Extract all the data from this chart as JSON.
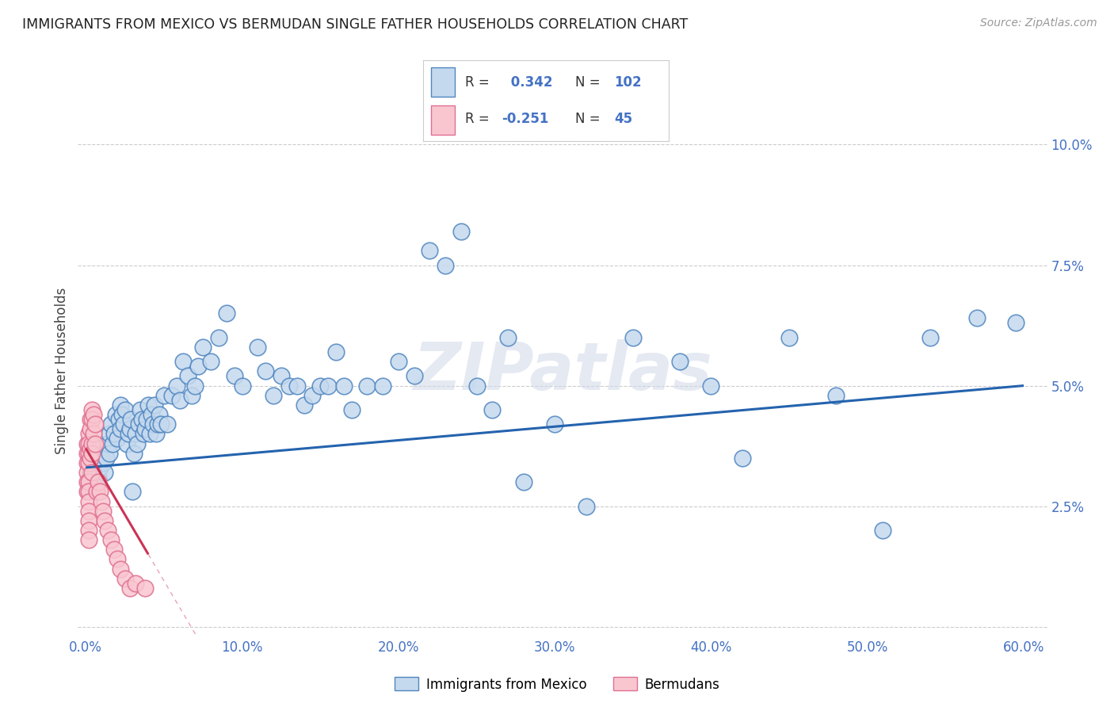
{
  "title": "IMMIGRANTS FROM MEXICO VS BERMUDAN SINGLE FATHER HOUSEHOLDS CORRELATION CHART",
  "source": "Source: ZipAtlas.com",
  "xlabel_blue": "Immigrants from Mexico",
  "xlabel_pink": "Bermudans",
  "ylabel": "Single Father Households",
  "xlim": [
    -0.005,
    0.615
  ],
  "ylim": [
    -0.002,
    0.108
  ],
  "xticks": [
    0.0,
    0.1,
    0.2,
    0.3,
    0.4,
    0.5,
    0.6
  ],
  "xtick_labels": [
    "0.0%",
    "10.0%",
    "20.0%",
    "30.0%",
    "40.0%",
    "50.0%",
    "60.0%"
  ],
  "yticks": [
    0.0,
    0.025,
    0.05,
    0.075,
    0.1
  ],
  "ytick_labels": [
    "",
    "2.5%",
    "5.0%",
    "7.5%",
    "10.0%"
  ],
  "r_blue": 0.342,
  "n_blue": 102,
  "r_pink": -0.251,
  "n_pink": 45,
  "blue_fill": "#c5d9ee",
  "pink_fill": "#f9c6d0",
  "blue_edge": "#4f86c0",
  "pink_edge": "#e07090",
  "blue_line_color": "#2463ae",
  "pink_line_color": "#cc3355",
  "legend_text_color": "#4472C4",
  "watermark": "ZIPatlas",
  "blue_line_y0": 0.033,
  "blue_line_y1": 0.05,
  "pink_line_y0": 0.037,
  "pink_line_slope": -0.55,
  "blue_x": [
    0.002,
    0.003,
    0.004,
    0.005,
    0.006,
    0.007,
    0.008,
    0.009,
    0.01,
    0.01,
    0.011,
    0.012,
    0.013,
    0.014,
    0.015,
    0.015,
    0.016,
    0.017,
    0.018,
    0.019,
    0.02,
    0.021,
    0.022,
    0.022,
    0.023,
    0.024,
    0.025,
    0.026,
    0.027,
    0.028,
    0.029,
    0.03,
    0.031,
    0.032,
    0.033,
    0.034,
    0.035,
    0.036,
    0.037,
    0.038,
    0.039,
    0.04,
    0.041,
    0.042,
    0.043,
    0.044,
    0.045,
    0.046,
    0.047,
    0.048,
    0.05,
    0.052,
    0.055,
    0.058,
    0.06,
    0.062,
    0.065,
    0.068,
    0.07,
    0.072,
    0.075,
    0.08,
    0.085,
    0.09,
    0.095,
    0.1,
    0.11,
    0.115,
    0.12,
    0.125,
    0.13,
    0.135,
    0.14,
    0.145,
    0.15,
    0.155,
    0.16,
    0.165,
    0.17,
    0.18,
    0.19,
    0.2,
    0.21,
    0.22,
    0.23,
    0.24,
    0.25,
    0.26,
    0.27,
    0.28,
    0.3,
    0.32,
    0.35,
    0.38,
    0.4,
    0.42,
    0.45,
    0.48,
    0.51,
    0.54,
    0.57,
    0.595
  ],
  "blue_y": [
    0.03,
    0.032,
    0.034,
    0.03,
    0.032,
    0.028,
    0.031,
    0.033,
    0.035,
    0.036,
    0.034,
    0.032,
    0.035,
    0.038,
    0.04,
    0.036,
    0.042,
    0.038,
    0.04,
    0.044,
    0.039,
    0.043,
    0.046,
    0.041,
    0.044,
    0.042,
    0.045,
    0.038,
    0.04,
    0.041,
    0.043,
    0.028,
    0.036,
    0.04,
    0.038,
    0.042,
    0.045,
    0.043,
    0.04,
    0.041,
    0.043,
    0.046,
    0.04,
    0.044,
    0.042,
    0.046,
    0.04,
    0.042,
    0.044,
    0.042,
    0.048,
    0.042,
    0.048,
    0.05,
    0.047,
    0.055,
    0.052,
    0.048,
    0.05,
    0.054,
    0.058,
    0.055,
    0.06,
    0.065,
    0.052,
    0.05,
    0.058,
    0.053,
    0.048,
    0.052,
    0.05,
    0.05,
    0.046,
    0.048,
    0.05,
    0.05,
    0.057,
    0.05,
    0.045,
    0.05,
    0.05,
    0.055,
    0.052,
    0.078,
    0.075,
    0.082,
    0.05,
    0.045,
    0.06,
    0.03,
    0.042,
    0.025,
    0.06,
    0.055,
    0.05,
    0.035,
    0.06,
    0.048,
    0.02,
    0.06,
    0.064,
    0.063
  ],
  "pink_x": [
    0.001,
    0.001,
    0.001,
    0.001,
    0.001,
    0.001,
    0.002,
    0.002,
    0.002,
    0.002,
    0.002,
    0.002,
    0.002,
    0.002,
    0.002,
    0.002,
    0.002,
    0.003,
    0.003,
    0.003,
    0.003,
    0.004,
    0.004,
    0.004,
    0.004,
    0.004,
    0.005,
    0.005,
    0.006,
    0.006,
    0.007,
    0.008,
    0.009,
    0.01,
    0.011,
    0.012,
    0.014,
    0.016,
    0.018,
    0.02,
    0.022,
    0.025,
    0.028,
    0.032,
    0.038
  ],
  "pink_y": [
    0.036,
    0.034,
    0.032,
    0.03,
    0.038,
    0.028,
    0.04,
    0.038,
    0.036,
    0.034,
    0.03,
    0.028,
    0.026,
    0.024,
    0.022,
    0.02,
    0.018,
    0.043,
    0.041,
    0.037,
    0.035,
    0.045,
    0.043,
    0.038,
    0.036,
    0.032,
    0.044,
    0.04,
    0.042,
    0.038,
    0.028,
    0.03,
    0.028,
    0.026,
    0.024,
    0.022,
    0.02,
    0.018,
    0.016,
    0.014,
    0.012,
    0.01,
    0.008,
    0.009,
    0.008
  ]
}
